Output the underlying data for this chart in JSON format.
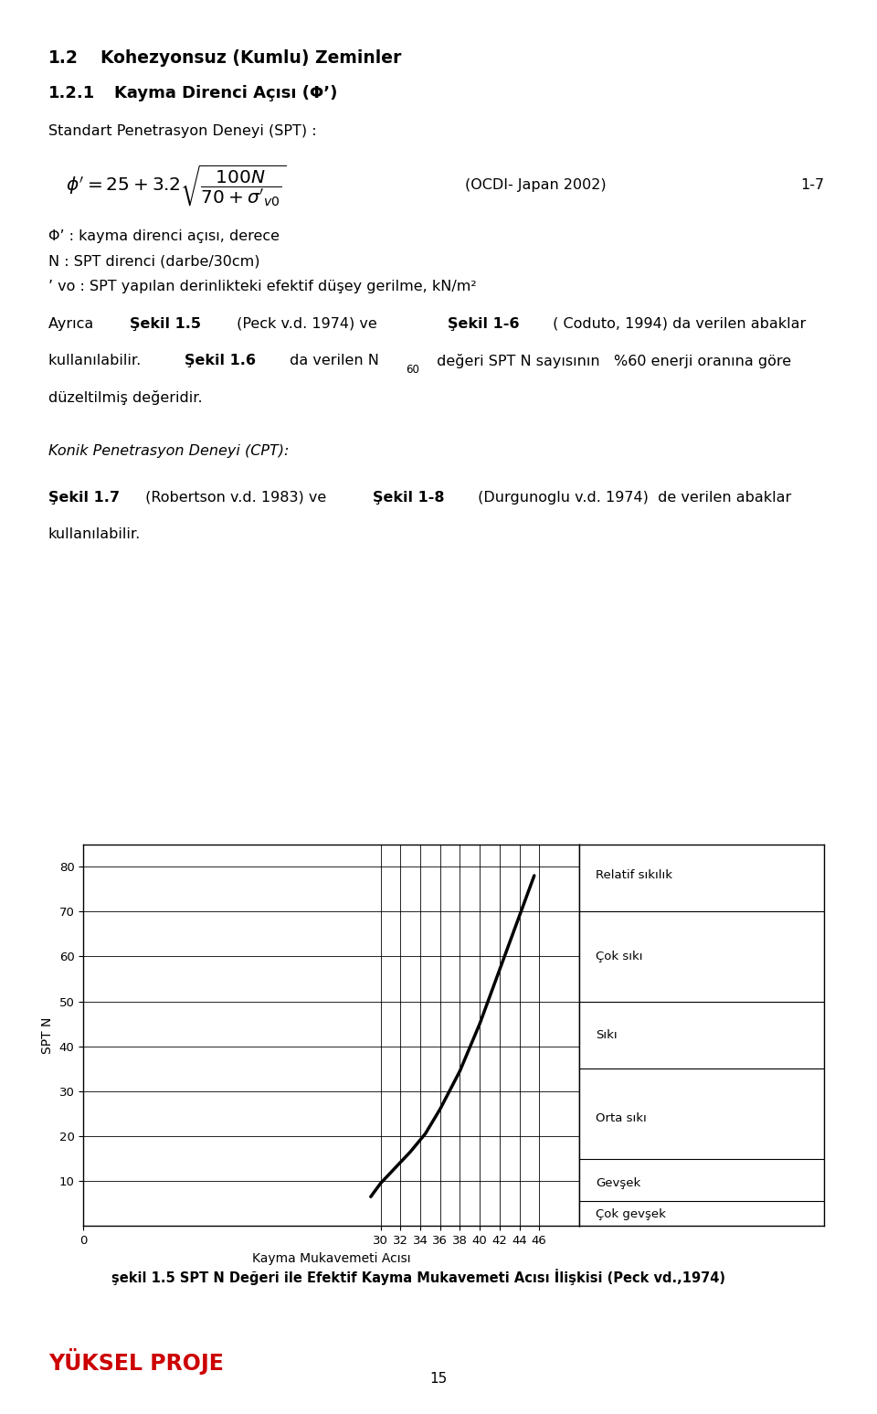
{
  "title1_num": "1.2",
  "title1_text": "Kohezyonsuz (Kumlu) Zeminler",
  "title2_num": "1.2.1",
  "title2_text": "Kayma Direnci Acısı (Φ’)",
  "underlined_text": "Standart Penetrasyon Deneyi (SPT) :",
  "formula_right": "(OCDI- Japan 2002)",
  "formula_eq_num": "1-7",
  "param1": "Φ’ : kayma direnci acısı, derece",
  "param2": "N : SPT direnci (darbe/30cm)",
  "param3": "’ vo : SPT yapılan derinlikteki efektif düşey gerilme, kN/m²",
  "italic_underline_text": "Konik Penetrasyon Deneyi (CPT):",
  "chart_xlabel": "Kayma Mukavemeti Acısı",
  "chart_ylabel": "SPT N",
  "chart_title": "şekil 1.5 SPT N Değeri ile Efektif Kayma Mukavemeti Acısı İlişkisi (Peck vd.,1974)",
  "xticks": [
    0,
    30,
    32,
    34,
    36,
    38,
    40,
    42,
    44,
    46
  ],
  "yticks": [
    10,
    20,
    30,
    40,
    50,
    60,
    70,
    80
  ],
  "xlim": [
    0,
    50
  ],
  "ylim": [
    0,
    85
  ],
  "curve_x": [
    29.0,
    30.0,
    31.5,
    33.0,
    34.5,
    36.0,
    38.0,
    40.0,
    42.0,
    44.0,
    45.5
  ],
  "curve_y": [
    6.5,
    9.5,
    13.0,
    16.5,
    20.5,
    26.0,
    34.5,
    45.0,
    57.0,
    69.0,
    78.0
  ],
  "legend_h_lines_y": [
    70,
    50,
    35,
    15,
    5.5
  ],
  "legend_labels": [
    [
      "Relatif sıkılık",
      78.0
    ],
    [
      "Çok sıkı",
      60.0
    ],
    [
      "Sıkı",
      42.5
    ],
    [
      "Orta sıkı",
      24.0
    ],
    [
      "Gevşek",
      9.5
    ],
    [
      "Çok gevşek",
      2.5
    ]
  ],
  "background_color": "#ffffff",
  "text_color": "#000000",
  "line_color": "#000000",
  "page_number": "15",
  "logo_text": "YÜKSEL PROJE",
  "logo_color": "#cc0000"
}
